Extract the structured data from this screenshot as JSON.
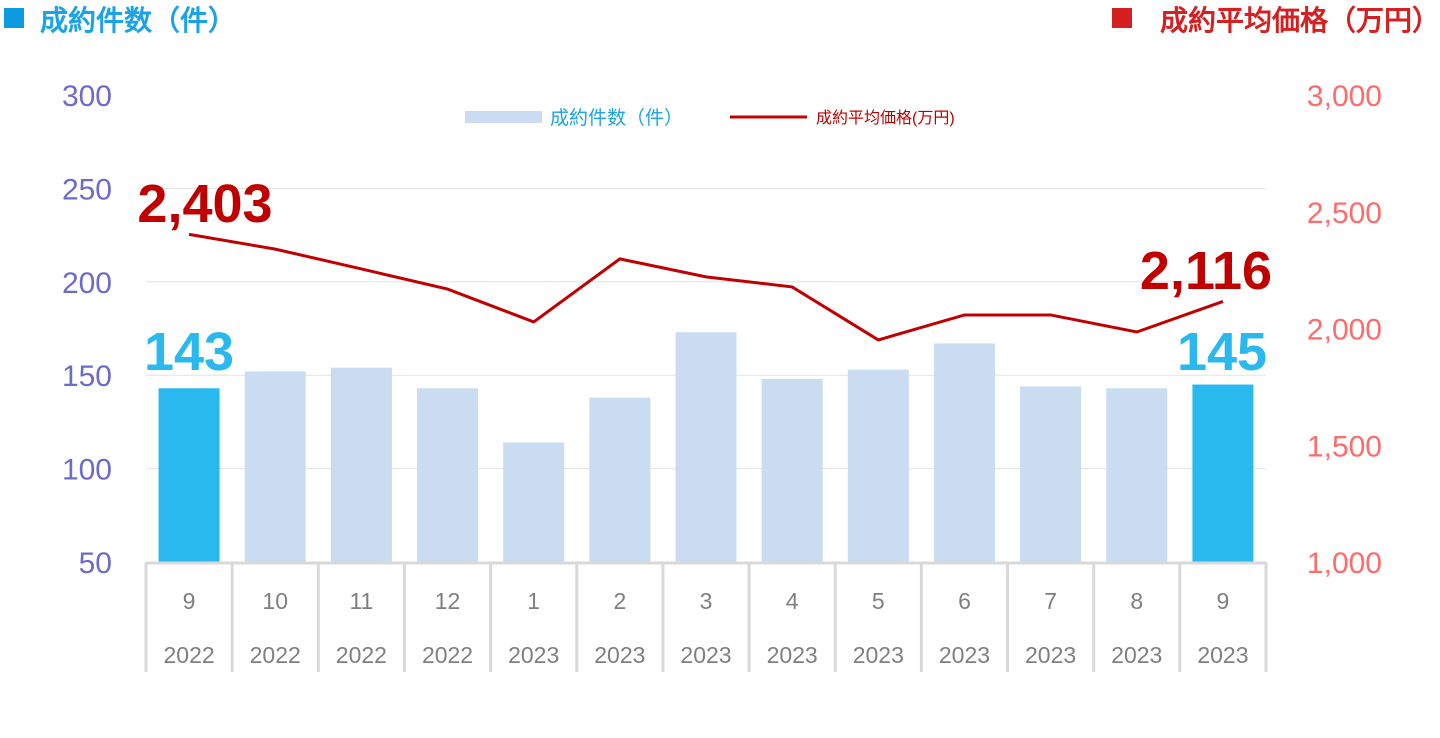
{
  "chart_data": {
    "type": "bar+line",
    "left_title": "成約件数（件）",
    "right_title": "成約平均価格（万円）",
    "colors": {
      "bar": "#C9DCF2",
      "bar_highlight": "#29B9EE",
      "line": "#C00000",
      "left_axis": "#6B6BCC",
      "right_axis": "#FF6B6B",
      "left_title": "#1AA3E8",
      "right_title": "#D42020",
      "left_marker": "#0A9BE0",
      "right_marker": "#D42020"
    },
    "legend": [
      {
        "label": "成約件数（件）",
        "type": "bar"
      },
      {
        "label": "成約平均価格(万円)",
        "type": "line"
      }
    ],
    "legend_position": "top-center",
    "categories": [
      "9",
      "10",
      "11",
      "12",
      "1",
      "2",
      "3",
      "4",
      "5",
      "6",
      "7",
      "8",
      "9"
    ],
    "years": [
      "2022",
      "2022",
      "2022",
      "2022",
      "2023",
      "2023",
      "2023",
      "2023",
      "2023",
      "2023",
      "2023",
      "2023",
      "2023"
    ],
    "series": [
      {
        "name": "成約件数（件）",
        "axis": "left",
        "type": "bar",
        "values": [
          143,
          152,
          154,
          143,
          114,
          138,
          173,
          148,
          153,
          167,
          144,
          143,
          145
        ],
        "highlight": [
          0,
          12
        ]
      },
      {
        "name": "成約平均価格(万円)",
        "axis": "right",
        "type": "line",
        "values": [
          2403,
          2340,
          2255,
          2169,
          2028,
          2298,
          2221,
          2178,
          1951,
          2058,
          2058,
          1985,
          2116
        ]
      }
    ],
    "left_axis": {
      "ylim": [
        50,
        300
      ],
      "ticks": [
        "50",
        "100",
        "150",
        "200",
        "250",
        "300"
      ]
    },
    "right_axis": {
      "ylim": [
        1000,
        3000
      ],
      "ticks": [
        "1,000",
        "1,500",
        "2,000",
        "2,500",
        "3,000"
      ]
    },
    "data_labels": {
      "bar_first": "143",
      "bar_last": "145",
      "line_first": "2,403",
      "line_last": "2,116"
    },
    "grid": true
  }
}
